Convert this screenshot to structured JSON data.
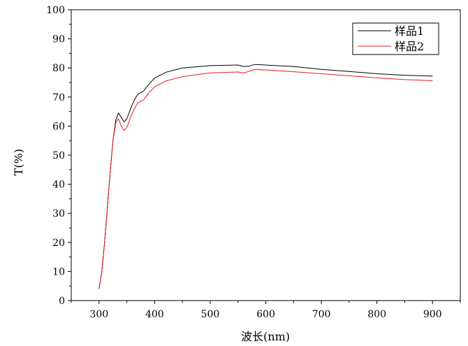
{
  "chart_data": {
    "type": "line",
    "title": "",
    "xlabel": "波长(nm)",
    "ylabel": "T(%)",
    "xlim": [
      250,
      950
    ],
    "ylim": [
      0,
      100
    ],
    "xticks": [
      300,
      400,
      500,
      600,
      700,
      800,
      900
    ],
    "yticks": [
      0,
      10,
      20,
      30,
      40,
      50,
      60,
      70,
      80,
      90,
      100
    ],
    "grid": false,
    "legend_position": "top-right",
    "series": [
      {
        "name": "样品1",
        "color": "#000000",
        "x": [
          300,
          305,
          310,
          315,
          320,
          325,
          330,
          335,
          340,
          345,
          350,
          355,
          360,
          365,
          370,
          380,
          390,
          400,
          420,
          450,
          500,
          550,
          560,
          570,
          580,
          600,
          650,
          700,
          750,
          800,
          850,
          900
        ],
        "y": [
          4,
          10,
          20,
          32,
          44,
          55,
          62,
          64.5,
          63,
          61.5,
          62.5,
          65,
          67.5,
          69.5,
          71,
          72,
          74.5,
          76.5,
          78.5,
          80,
          80.8,
          81,
          80.5,
          80.6,
          81.2,
          81,
          80.5,
          79.5,
          78.8,
          78,
          77.5,
          77.2
        ]
      },
      {
        "name": "样品2",
        "color": "#e8191f",
        "x": [
          300,
          305,
          310,
          315,
          320,
          325,
          330,
          335,
          340,
          345,
          350,
          355,
          360,
          365,
          370,
          380,
          390,
          400,
          420,
          450,
          500,
          550,
          560,
          570,
          580,
          600,
          650,
          700,
          750,
          800,
          850,
          900
        ],
        "y": [
          4,
          10,
          20,
          32,
          44,
          55,
          61,
          62.5,
          60,
          58.5,
          59.5,
          62,
          64.5,
          66.5,
          68,
          69,
          71.5,
          73.5,
          75.5,
          77,
          78.3,
          78.6,
          78.3,
          78.8,
          79.5,
          79.3,
          78.7,
          78,
          77.3,
          76.6,
          76,
          75.6
        ]
      }
    ]
  }
}
